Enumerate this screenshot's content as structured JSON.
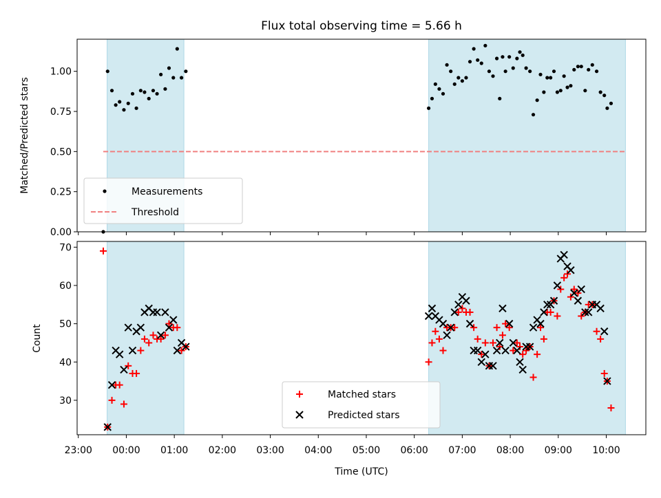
{
  "figure": {
    "title": "Flux total observing time = 5.66 h",
    "xlabel": "Time (UTC)",
    "x_ticks": [
      "23:00",
      "00:00",
      "01:00",
      "02:00",
      "03:00",
      "04:00",
      "05:00",
      "06:00",
      "07:00",
      "08:00",
      "09:00",
      "10:00"
    ]
  },
  "colors": {
    "shade": "#add8e6",
    "threshold": "#f08080",
    "matched": "#ff0000",
    "predicted": "#000000",
    "measurement": "#000000"
  },
  "chart_data": [
    {
      "type": "scatter",
      "ylabel": "Matched/Predicted stars",
      "xlim_hours": [
        -0.025,
        11.825
      ],
      "ylim": [
        0,
        1.2
      ],
      "y_ticks": [
        "0.00",
        "0.25",
        "0.50",
        "0.75",
        "1.00"
      ],
      "y_tick_values": [
        0,
        0.25,
        0.5,
        0.75,
        1.0
      ],
      "shaded_intervals_hours": [
        [
          0.6,
          2.2
        ],
        [
          7.3,
          11.4
        ]
      ],
      "legend": [
        {
          "label": "Measurements"
        },
        {
          "label": "Threshold"
        }
      ],
      "threshold": {
        "value": 0.5,
        "x_range_hours": [
          0.52,
          11.4
        ]
      },
      "series": [
        {
          "name": "Measurements",
          "points": [
            [
              0.52,
              0.0
            ],
            [
              0.61,
              1.0
            ],
            [
              0.7,
              0.88
            ],
            [
              0.78,
              0.79
            ],
            [
              0.86,
              0.81
            ],
            [
              0.95,
              0.76
            ],
            [
              1.04,
              0.8
            ],
            [
              1.13,
              0.86
            ],
            [
              1.21,
              0.77
            ],
            [
              1.3,
              0.88
            ],
            [
              1.38,
              0.87
            ],
            [
              1.47,
              0.83
            ],
            [
              1.56,
              0.88
            ],
            [
              1.64,
              0.86
            ],
            [
              1.72,
              0.98
            ],
            [
              1.81,
              0.89
            ],
            [
              1.89,
              1.02
            ],
            [
              1.98,
              0.96
            ],
            [
              2.06,
              1.14
            ],
            [
              2.15,
              0.96
            ],
            [
              2.24,
              1.0
            ],
            [
              7.3,
              0.77
            ],
            [
              7.37,
              0.83
            ],
            [
              7.44,
              0.92
            ],
            [
              7.52,
              0.89
            ],
            [
              7.6,
              0.86
            ],
            [
              7.68,
              1.04
            ],
            [
              7.76,
              1.0
            ],
            [
              7.84,
              0.92
            ],
            [
              7.92,
              0.96
            ],
            [
              8.0,
              0.94
            ],
            [
              8.08,
              0.96
            ],
            [
              8.16,
              1.06
            ],
            [
              8.24,
              1.14
            ],
            [
              8.32,
              1.07
            ],
            [
              8.4,
              1.05
            ],
            [
              8.48,
              1.16
            ],
            [
              8.56,
              1.0
            ],
            [
              8.64,
              0.97
            ],
            [
              8.72,
              1.08
            ],
            [
              8.78,
              0.83
            ],
            [
              8.84,
              1.09
            ],
            [
              8.9,
              1.0
            ],
            [
              8.98,
              1.09
            ],
            [
              9.06,
              1.02
            ],
            [
              9.14,
              1.08
            ],
            [
              9.2,
              1.12
            ],
            [
              9.26,
              1.1
            ],
            [
              9.33,
              1.02
            ],
            [
              9.41,
              1.0
            ],
            [
              9.48,
              0.73
            ],
            [
              9.56,
              0.82
            ],
            [
              9.63,
              0.98
            ],
            [
              9.7,
              0.87
            ],
            [
              9.77,
              0.96
            ],
            [
              9.84,
              0.96
            ],
            [
              9.91,
              1.0
            ],
            [
              9.98,
              0.87
            ],
            [
              10.05,
              0.88
            ],
            [
              10.12,
              0.97
            ],
            [
              10.19,
              0.9
            ],
            [
              10.26,
              0.91
            ],
            [
              10.33,
              1.01
            ],
            [
              10.41,
              1.03
            ],
            [
              10.48,
              1.03
            ],
            [
              10.56,
              0.88
            ],
            [
              10.63,
              1.01
            ],
            [
              10.71,
              1.04
            ],
            [
              10.8,
              1.0
            ],
            [
              10.88,
              0.87
            ],
            [
              10.96,
              0.85
            ],
            [
              11.02,
              0.77
            ],
            [
              11.1,
              0.8
            ]
          ]
        }
      ]
    },
    {
      "type": "scatter",
      "ylabel": "Count",
      "xlim_hours": [
        -0.025,
        11.825
      ],
      "ylim": [
        21,
        71.5
      ],
      "y_ticks": [
        "30",
        "40",
        "50",
        "60",
        "70"
      ],
      "y_tick_values": [
        30,
        40,
        50,
        60,
        70
      ],
      "shaded_intervals_hours": [
        [
          0.6,
          2.2
        ],
        [
          7.3,
          11.4
        ]
      ],
      "legend": [
        {
          "label": "Matched stars"
        },
        {
          "label": "Predicted stars"
        }
      ],
      "series": [
        {
          "name": "Matched stars",
          "marker": "plus",
          "points": [
            [
              0.52,
              69
            ],
            [
              0.61,
              23
            ],
            [
              0.7,
              30
            ],
            [
              0.78,
              34
            ],
            [
              0.86,
              34
            ],
            [
              0.95,
              29
            ],
            [
              1.04,
              39
            ],
            [
              1.13,
              37
            ],
            [
              1.21,
              37
            ],
            [
              1.3,
              43
            ],
            [
              1.38,
              46
            ],
            [
              1.47,
              45
            ],
            [
              1.56,
              47
            ],
            [
              1.64,
              46
            ],
            [
              1.72,
              46
            ],
            [
              1.81,
              47
            ],
            [
              1.89,
              50
            ],
            [
              1.98,
              49
            ],
            [
              2.06,
              49
            ],
            [
              2.15,
              43
            ],
            [
              2.24,
              44
            ],
            [
              7.3,
              40
            ],
            [
              7.37,
              45
            ],
            [
              7.44,
              48
            ],
            [
              7.52,
              46
            ],
            [
              7.6,
              43
            ],
            [
              7.68,
              49
            ],
            [
              7.76,
              49
            ],
            [
              7.84,
              49
            ],
            [
              7.92,
              53
            ],
            [
              8.0,
              54
            ],
            [
              8.08,
              53
            ],
            [
              8.16,
              53
            ],
            [
              8.24,
              49
            ],
            [
              8.32,
              46
            ],
            [
              8.4,
              42
            ],
            [
              8.48,
              45
            ],
            [
              8.56,
              39
            ],
            [
              8.64,
              45
            ],
            [
              8.72,
              49
            ],
            [
              8.78,
              44
            ],
            [
              8.84,
              47
            ],
            [
              8.9,
              50
            ],
            [
              8.98,
              49
            ],
            [
              9.06,
              43
            ],
            [
              9.14,
              45
            ],
            [
              9.2,
              44
            ],
            [
              9.26,
              42
            ],
            [
              9.33,
              43
            ],
            [
              9.41,
              44
            ],
            [
              9.48,
              36
            ],
            [
              9.56,
              42
            ],
            [
              9.63,
              49
            ],
            [
              9.7,
              46
            ],
            [
              9.77,
              53
            ],
            [
              9.84,
              53
            ],
            [
              9.91,
              56
            ],
            [
              9.98,
              52
            ],
            [
              10.05,
              59
            ],
            [
              10.12,
              62
            ],
            [
              10.19,
              63
            ],
            [
              10.26,
              57
            ],
            [
              10.33,
              59
            ],
            [
              10.41,
              58
            ],
            [
              10.48,
              52
            ],
            [
              10.56,
              53
            ],
            [
              10.63,
              55
            ],
            [
              10.71,
              55
            ],
            [
              10.8,
              48
            ],
            [
              10.88,
              46
            ],
            [
              10.96,
              37
            ],
            [
              11.02,
              35
            ],
            [
              11.1,
              28
            ]
          ]
        },
        {
          "name": "Predicted stars",
          "marker": "x",
          "points": [
            [
              0.61,
              23
            ],
            [
              0.7,
              34
            ],
            [
              0.78,
              43
            ],
            [
              0.86,
              42
            ],
            [
              0.95,
              38
            ],
            [
              1.04,
              49
            ],
            [
              1.13,
              43
            ],
            [
              1.21,
              48
            ],
            [
              1.3,
              49
            ],
            [
              1.38,
              53
            ],
            [
              1.47,
              54
            ],
            [
              1.56,
              53
            ],
            [
              1.64,
              53
            ],
            [
              1.72,
              47
            ],
            [
              1.81,
              53
            ],
            [
              1.89,
              49
            ],
            [
              1.98,
              51
            ],
            [
              2.06,
              43
            ],
            [
              2.15,
              45
            ],
            [
              2.24,
              44
            ],
            [
              7.3,
              52
            ],
            [
              7.37,
              54
            ],
            [
              7.44,
              52
            ],
            [
              7.52,
              51
            ],
            [
              7.6,
              50
            ],
            [
              7.68,
              47
            ],
            [
              7.76,
              49
            ],
            [
              7.84,
              53
            ],
            [
              7.92,
              55
            ],
            [
              8.0,
              57
            ],
            [
              8.08,
              56
            ],
            [
              8.16,
              50
            ],
            [
              8.24,
              43
            ],
            [
              8.32,
              43
            ],
            [
              8.4,
              40
            ],
            [
              8.48,
              42
            ],
            [
              8.56,
              39
            ],
            [
              8.64,
              39
            ],
            [
              8.72,
              43
            ],
            [
              8.78,
              45
            ],
            [
              8.84,
              54
            ],
            [
              8.9,
              43
            ],
            [
              8.98,
              50
            ],
            [
              9.06,
              45
            ],
            [
              9.14,
              43
            ],
            [
              9.2,
              40
            ],
            [
              9.26,
              38
            ],
            [
              9.33,
              44
            ],
            [
              9.41,
              44
            ],
            [
              9.48,
              49
            ],
            [
              9.56,
              51
            ],
            [
              9.63,
              50
            ],
            [
              9.7,
              53
            ],
            [
              9.77,
              55
            ],
            [
              9.84,
              55
            ],
            [
              9.91,
              56
            ],
            [
              9.98,
              60
            ],
            [
              10.05,
              67
            ],
            [
              10.12,
              68
            ],
            [
              10.19,
              65
            ],
            [
              10.26,
              64
            ],
            [
              10.33,
              58
            ],
            [
              10.41,
              56
            ],
            [
              10.48,
              59
            ],
            [
              10.56,
              53
            ],
            [
              10.63,
              53
            ],
            [
              10.71,
              55
            ],
            [
              10.8,
              55
            ],
            [
              10.88,
              54
            ],
            [
              10.96,
              48
            ],
            [
              11.02,
              35
            ]
          ]
        }
      ]
    }
  ]
}
